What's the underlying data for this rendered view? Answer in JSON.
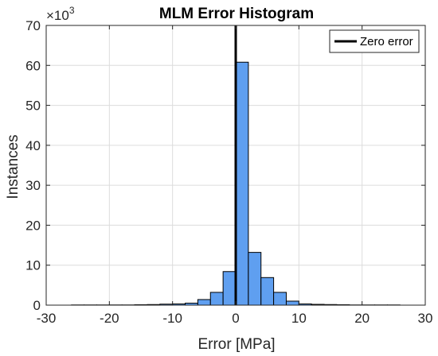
{
  "chart_data": {
    "type": "bar",
    "title": "MLM Error Histogram",
    "xlabel": "Error [MPa]",
    "ylabel": "Instances",
    "y_multiplier_prefix": "×10",
    "y_multiplier_exp": "3",
    "xlim": [
      -30,
      30
    ],
    "ylim": [
      0,
      70
    ],
    "xticks": [
      -30,
      -20,
      -10,
      0,
      10,
      20,
      30
    ],
    "yticks": [
      0,
      10,
      20,
      30,
      40,
      50,
      60,
      70
    ],
    "grid": true,
    "legend_position": "top-right",
    "bar_color": "#5f9ff0",
    "bin_width": 2,
    "bins": [
      {
        "x0": -26,
        "value": 0.05
      },
      {
        "x0": -24,
        "value": 0.05
      },
      {
        "x0": -22,
        "value": 0.05
      },
      {
        "x0": -20,
        "value": 0.05
      },
      {
        "x0": -18,
        "value": 0.05
      },
      {
        "x0": -16,
        "value": 0.1
      },
      {
        "x0": -14,
        "value": 0.15
      },
      {
        "x0": -12,
        "value": 0.25
      },
      {
        "x0": -10,
        "value": 0.3
      },
      {
        "x0": -8,
        "value": 0.5
      },
      {
        "x0": -6,
        "value": 1.4
      },
      {
        "x0": -4,
        "value": 3.2
      },
      {
        "x0": -2,
        "value": 8.4
      },
      {
        "x0": 0,
        "value": 60.8
      },
      {
        "x0": 2,
        "value": 13.2
      },
      {
        "x0": 4,
        "value": 6.9
      },
      {
        "x0": 6,
        "value": 3.2
      },
      {
        "x0": 8,
        "value": 1.0
      },
      {
        "x0": 10,
        "value": 0.3
      },
      {
        "x0": 12,
        "value": 0.2
      },
      {
        "x0": 14,
        "value": 0.15
      },
      {
        "x0": 16,
        "value": 0.1
      },
      {
        "x0": 18,
        "value": 0.05
      },
      {
        "x0": 20,
        "value": 0.05
      },
      {
        "x0": 22,
        "value": 0.05
      },
      {
        "x0": 24,
        "value": 0.05
      }
    ],
    "reference_line": {
      "x": 0,
      "name": "Zero error",
      "color": "#000000"
    }
  }
}
